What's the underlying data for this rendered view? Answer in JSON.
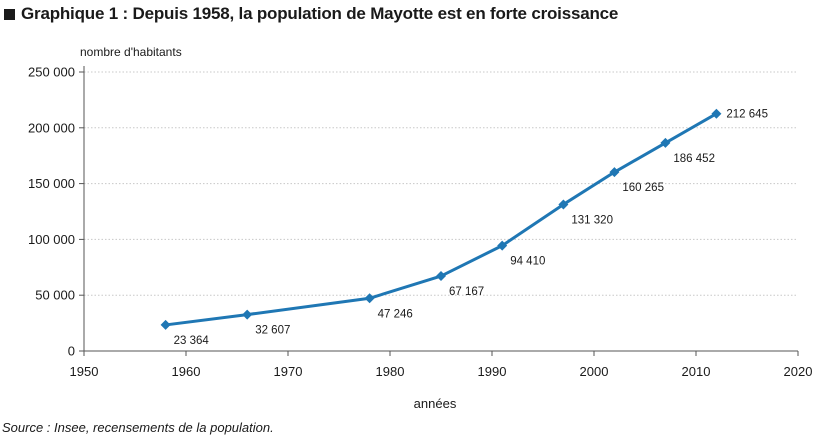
{
  "title": "Graphique 1 : Depuis 1958, la population de Mayotte est en forte croissance",
  "source": "Source : Insee, recensements de la population.",
  "chart_data": {
    "type": "line",
    "ylabel": "nombre d'habitants",
    "xlabel": "années",
    "xlim": [
      1950,
      2020
    ],
    "ylim": [
      0,
      250000
    ],
    "xticks": [
      "1950",
      "1960",
      "1970",
      "1980",
      "1990",
      "2000",
      "2010",
      "2020"
    ],
    "yticks": [
      "0",
      "50 000",
      "100 000",
      "150 000",
      "200 000",
      "250 000"
    ],
    "grid": true,
    "series": [
      {
        "color": "#1f77b4",
        "x": [
          1958,
          1966,
          1978,
          1985,
          1991,
          1997,
          2002,
          2007,
          2012
        ],
        "y": [
          23364,
          32607,
          47246,
          67167,
          94410,
          131320,
          160265,
          186452,
          212645
        ],
        "labels": [
          "23 364",
          "32 607",
          "47 246",
          "67 167",
          "94 410",
          "131 320",
          "160 265",
          "186 452",
          "212 645"
        ]
      }
    ]
  }
}
